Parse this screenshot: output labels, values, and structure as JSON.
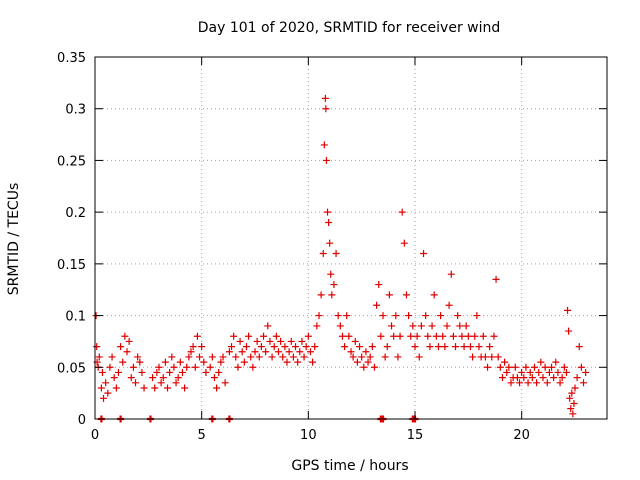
{
  "chart_data": {
    "type": "scatter",
    "title": "Day 101 of 2020, SRMTID for receiver wind",
    "xlabel": "GPS time / hours",
    "ylabel": "SRMTID / TECUs",
    "xlim": [
      0,
      24
    ],
    "ylim": [
      0,
      0.35
    ],
    "xticks": [
      0,
      5,
      10,
      15,
      20
    ],
    "xtick_labels": [
      "0",
      "5",
      "10",
      "15",
      "20"
    ],
    "yticks": [
      0,
      0.05,
      0.1,
      0.15,
      0.2,
      0.25,
      0.3,
      0.35
    ],
    "ytick_labels": [
      "0",
      "0.05",
      "0.1",
      "0.15",
      "0.2",
      "0.25",
      "0.3",
      "0.35"
    ],
    "grid": true,
    "marker": "+",
    "color": "#e00000",
    "series": [
      {
        "name": "SRMTID",
        "points": [
          [
            0.05,
            0.1
          ],
          [
            0.08,
            0.07
          ],
          [
            0.1,
            0.055
          ],
          [
            0.15,
            0.05
          ],
          [
            0.2,
            0.06
          ],
          [
            0.3,
            0.03
          ],
          [
            0.35,
            0.045
          ],
          [
            0.4,
            0.02
          ],
          [
            0.5,
            0.035
          ],
          [
            0.6,
            0.025
          ],
          [
            0.7,
            0.05
          ],
          [
            0.8,
            0.06
          ],
          [
            0.9,
            0.04
          ],
          [
            1.0,
            0.03
          ],
          [
            1.1,
            0.045
          ],
          [
            1.2,
            0.07
          ],
          [
            1.3,
            0.055
          ],
          [
            1.4,
            0.08
          ],
          [
            1.5,
            0.065
          ],
          [
            1.6,
            0.075
          ],
          [
            1.7,
            0.04
          ],
          [
            1.8,
            0.05
          ],
          [
            1.9,
            0.035
          ],
          [
            2.0,
            0.06
          ],
          [
            2.1,
            0.055
          ],
          [
            2.2,
            0.045
          ],
          [
            2.3,
            0.03
          ],
          [
            2.7,
            0.04
          ],
          [
            2.8,
            0.03
          ],
          [
            2.9,
            0.045
          ],
          [
            3.0,
            0.05
          ],
          [
            3.1,
            0.035
          ],
          [
            3.2,
            0.04
          ],
          [
            3.3,
            0.055
          ],
          [
            3.4,
            0.03
          ],
          [
            3.5,
            0.045
          ],
          [
            3.6,
            0.06
          ],
          [
            3.7,
            0.05
          ],
          [
            3.8,
            0.035
          ],
          [
            3.9,
            0.04
          ],
          [
            4.0,
            0.055
          ],
          [
            4.1,
            0.045
          ],
          [
            4.2,
            0.03
          ],
          [
            4.3,
            0.05
          ],
          [
            4.4,
            0.06
          ],
          [
            4.5,
            0.065
          ],
          [
            4.6,
            0.07
          ],
          [
            4.7,
            0.05
          ],
          [
            4.8,
            0.08
          ],
          [
            4.9,
            0.06
          ],
          [
            5.0,
            0.07
          ],
          [
            5.1,
            0.055
          ],
          [
            5.2,
            0.045
          ],
          [
            5.4,
            0.05
          ],
          [
            5.5,
            0.06
          ],
          [
            5.6,
            0.04
          ],
          [
            5.7,
            0.03
          ],
          [
            5.8,
            0.045
          ],
          [
            5.9,
            0.055
          ],
          [
            6.0,
            0.06
          ],
          [
            6.1,
            0.035
          ],
          [
            6.3,
            0.065
          ],
          [
            6.4,
            0.07
          ],
          [
            6.5,
            0.08
          ],
          [
            6.6,
            0.06
          ],
          [
            6.7,
            0.05
          ],
          [
            6.8,
            0.075
          ],
          [
            6.9,
            0.065
          ],
          [
            7.0,
            0.055
          ],
          [
            7.1,
            0.07
          ],
          [
            7.2,
            0.08
          ],
          [
            7.3,
            0.06
          ],
          [
            7.4,
            0.05
          ],
          [
            7.5,
            0.065
          ],
          [
            7.6,
            0.075
          ],
          [
            7.7,
            0.06
          ],
          [
            7.8,
            0.07
          ],
          [
            7.9,
            0.08
          ],
          [
            8.0,
            0.065
          ],
          [
            8.1,
            0.09
          ],
          [
            8.2,
            0.075
          ],
          [
            8.3,
            0.06
          ],
          [
            8.4,
            0.07
          ],
          [
            8.5,
            0.08
          ],
          [
            8.6,
            0.065
          ],
          [
            8.7,
            0.075
          ],
          [
            8.8,
            0.06
          ],
          [
            8.9,
            0.07
          ],
          [
            9.0,
            0.055
          ],
          [
            9.1,
            0.065
          ],
          [
            9.2,
            0.075
          ],
          [
            9.3,
            0.06
          ],
          [
            9.4,
            0.07
          ],
          [
            9.5,
            0.055
          ],
          [
            9.6,
            0.065
          ],
          [
            9.7,
            0.075
          ],
          [
            9.8,
            0.06
          ],
          [
            9.9,
            0.07
          ],
          [
            10.0,
            0.08
          ],
          [
            10.1,
            0.065
          ],
          [
            10.2,
            0.055
          ],
          [
            10.3,
            0.07
          ],
          [
            10.4,
            0.09
          ],
          [
            10.5,
            0.1
          ],
          [
            10.6,
            0.12
          ],
          [
            10.7,
            0.16
          ],
          [
            10.75,
            0.265
          ],
          [
            10.8,
            0.31
          ],
          [
            10.82,
            0.3
          ],
          [
            10.85,
            0.25
          ],
          [
            10.9,
            0.2
          ],
          [
            10.95,
            0.19
          ],
          [
            11.0,
            0.17
          ],
          [
            11.05,
            0.14
          ],
          [
            11.1,
            0.12
          ],
          [
            11.2,
            0.13
          ],
          [
            11.3,
            0.16
          ],
          [
            11.4,
            0.1
          ],
          [
            11.5,
            0.09
          ],
          [
            11.6,
            0.08
          ],
          [
            11.7,
            0.07
          ],
          [
            11.8,
            0.1
          ],
          [
            11.9,
            0.08
          ],
          [
            12.0,
            0.065
          ],
          [
            12.1,
            0.06
          ],
          [
            12.2,
            0.075
          ],
          [
            12.3,
            0.055
          ],
          [
            12.4,
            0.07
          ],
          [
            12.5,
            0.06
          ],
          [
            12.6,
            0.05
          ],
          [
            12.7,
            0.065
          ],
          [
            12.8,
            0.055
          ],
          [
            12.9,
            0.06
          ],
          [
            13.0,
            0.07
          ],
          [
            13.1,
            0.05
          ],
          [
            13.2,
            0.11
          ],
          [
            13.3,
            0.13
          ],
          [
            13.4,
            0.08
          ],
          [
            13.5,
            0.1
          ],
          [
            13.6,
            0.06
          ],
          [
            13.7,
            0.07
          ],
          [
            13.8,
            0.12
          ],
          [
            13.9,
            0.09
          ],
          [
            14.0,
            0.08
          ],
          [
            14.1,
            0.1
          ],
          [
            14.2,
            0.06
          ],
          [
            14.3,
            0.08
          ],
          [
            14.4,
            0.2
          ],
          [
            14.5,
            0.17
          ],
          [
            14.6,
            0.12
          ],
          [
            14.7,
            0.1
          ],
          [
            14.8,
            0.08
          ],
          [
            14.9,
            0.09
          ],
          [
            15.0,
            0.07
          ],
          [
            15.1,
            0.08
          ],
          [
            15.2,
            0.06
          ],
          [
            15.3,
            0.09
          ],
          [
            15.4,
            0.16
          ],
          [
            15.5,
            0.1
          ],
          [
            15.6,
            0.08
          ],
          [
            15.7,
            0.07
          ],
          [
            15.8,
            0.09
          ],
          [
            15.9,
            0.12
          ],
          [
            16.0,
            0.08
          ],
          [
            16.1,
            0.07
          ],
          [
            16.2,
            0.1
          ],
          [
            16.3,
            0.08
          ],
          [
            16.4,
            0.07
          ],
          [
            16.5,
            0.09
          ],
          [
            16.6,
            0.11
          ],
          [
            16.7,
            0.14
          ],
          [
            16.8,
            0.08
          ],
          [
            16.9,
            0.07
          ],
          [
            17.0,
            0.1
          ],
          [
            17.1,
            0.09
          ],
          [
            17.2,
            0.08
          ],
          [
            17.3,
            0.07
          ],
          [
            17.4,
            0.09
          ],
          [
            17.5,
            0.08
          ],
          [
            17.6,
            0.07
          ],
          [
            17.7,
            0.06
          ],
          [
            17.8,
            0.08
          ],
          [
            17.9,
            0.1
          ],
          [
            18.0,
            0.07
          ],
          [
            18.1,
            0.06
          ],
          [
            18.2,
            0.08
          ],
          [
            18.3,
            0.06
          ],
          [
            18.4,
            0.05
          ],
          [
            18.5,
            0.07
          ],
          [
            18.6,
            0.06
          ],
          [
            18.7,
            0.08
          ],
          [
            18.8,
            0.135
          ],
          [
            18.9,
            0.06
          ],
          [
            19.0,
            0.05
          ],
          [
            19.1,
            0.04
          ],
          [
            19.2,
            0.055
          ],
          [
            19.3,
            0.045
          ],
          [
            19.4,
            0.05
          ],
          [
            19.5,
            0.035
          ],
          [
            19.6,
            0.04
          ],
          [
            19.7,
            0.05
          ],
          [
            19.8,
            0.04
          ],
          [
            19.9,
            0.035
          ],
          [
            20.0,
            0.045
          ],
          [
            20.1,
            0.04
          ],
          [
            20.2,
            0.05
          ],
          [
            20.3,
            0.035
          ],
          [
            20.4,
            0.045
          ],
          [
            20.5,
            0.04
          ],
          [
            20.6,
            0.05
          ],
          [
            20.7,
            0.035
          ],
          [
            20.8,
            0.045
          ],
          [
            20.9,
            0.055
          ],
          [
            21.0,
            0.04
          ],
          [
            21.1,
            0.05
          ],
          [
            21.2,
            0.035
          ],
          [
            21.3,
            0.045
          ],
          [
            21.4,
            0.05
          ],
          [
            21.5,
            0.04
          ],
          [
            21.6,
            0.055
          ],
          [
            21.7,
            0.045
          ],
          [
            21.8,
            0.035
          ],
          [
            21.9,
            0.04
          ],
          [
            22.0,
            0.05
          ],
          [
            22.1,
            0.045
          ],
          [
            22.15,
            0.105
          ],
          [
            22.2,
            0.085
          ],
          [
            22.25,
            0.02
          ],
          [
            22.3,
            0.01
          ],
          [
            22.35,
            0.025
          ],
          [
            22.4,
            0.005
          ],
          [
            22.45,
            0.015
          ],
          [
            22.5,
            0.03
          ],
          [
            22.6,
            0.04
          ],
          [
            22.7,
            0.07
          ],
          [
            22.8,
            0.05
          ],
          [
            22.9,
            0.035
          ],
          [
            23.0,
            0.045
          ]
        ],
        "zero_points": [
          0.3,
          1.2,
          2.6,
          5.5,
          6.3,
          13.4,
          13.5,
          14.9,
          15.0
        ]
      }
    ]
  }
}
